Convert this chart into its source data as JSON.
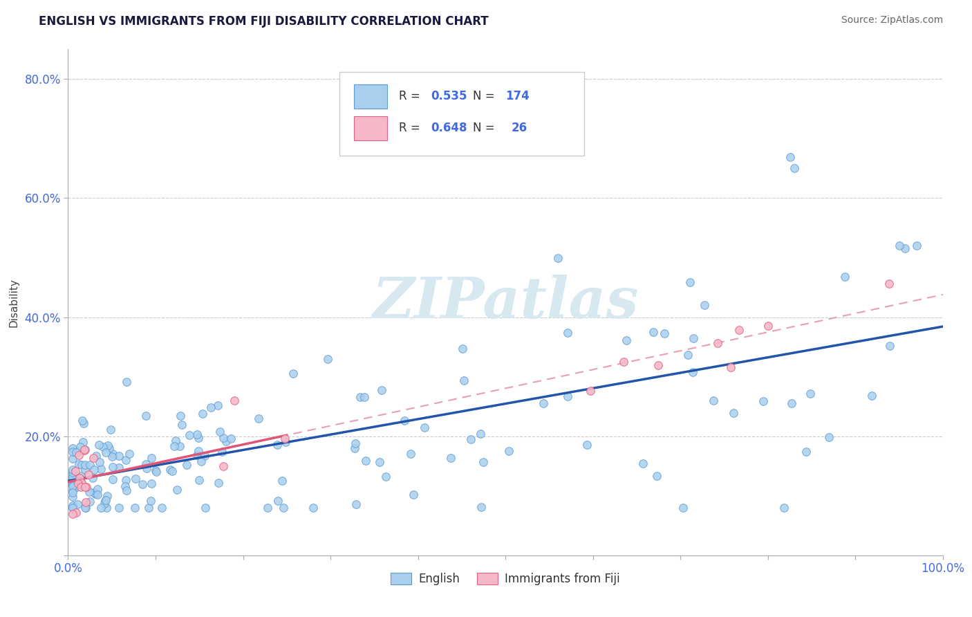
{
  "title": "ENGLISH VS IMMIGRANTS FROM FIJI DISABILITY CORRELATION CHART",
  "source": "Source: ZipAtlas.com",
  "ylabel": "Disability",
  "xlim": [
    0.0,
    1.0
  ],
  "ylim": [
    0.0,
    0.85
  ],
  "english_color": "#aacfee",
  "english_edge_color": "#5b9bd5",
  "fiji_color": "#f4b8c8",
  "fiji_edge_color": "#e06080",
  "english_line_color": "#2255aa",
  "fiji_line_color": "#e05575",
  "fiji_trend_dash_color": "#e8a0b0",
  "R_english": 0.535,
  "N_english": 174,
  "R_fiji": 0.648,
  "N_fiji": 26,
  "background_color": "#ffffff",
  "grid_color": "#cccccc",
  "watermark_color": "#d8e8f0",
  "legend_label_english": "English",
  "legend_label_fiji": "Immigrants from Fiji",
  "label_color": "#4169E1",
  "title_color": "#1a1a3e"
}
